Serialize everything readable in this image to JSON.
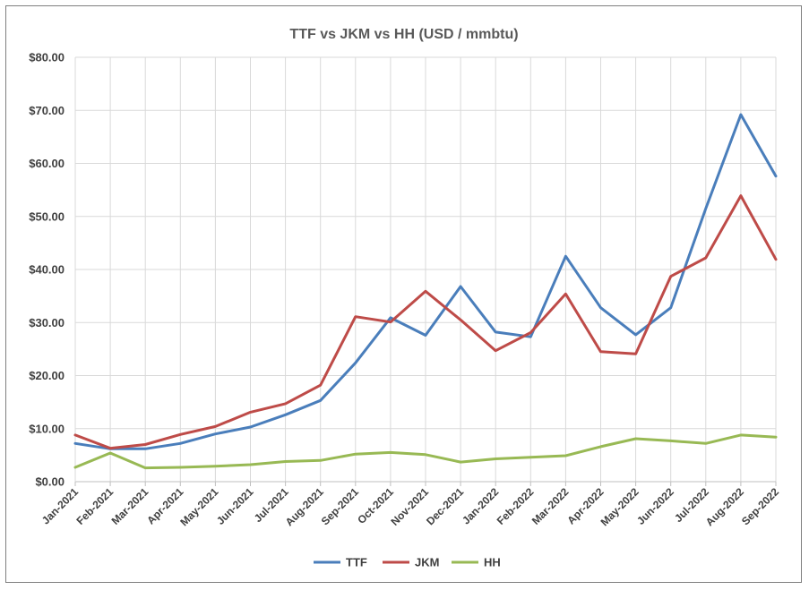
{
  "chart_data": {
    "type": "line",
    "title": "TTF vs JKM vs HH (USD / mmbtu)",
    "xlabel": "",
    "ylabel": "",
    "ylim": [
      0,
      80
    ],
    "y_ticks": [
      "$0.00",
      "$10.00",
      "$20.00",
      "$30.00",
      "$40.00",
      "$50.00",
      "$60.00",
      "$70.00",
      "$80.00"
    ],
    "categories": [
      "Jan-2021",
      "Feb-2021",
      "Mar-2021",
      "Apr-2021",
      "May-2021",
      "Jun-2021",
      "Jul-2021",
      "Aug-2021",
      "Sep-2021",
      "Oct-2021",
      "Nov-2021",
      "Dec-2021",
      "Jan-2022",
      "Feb-2022",
      "Mar-2022",
      "Apr-2022",
      "May-2022",
      "Jun-2022",
      "Jul-2022",
      "Aug-2022",
      "Sep-2022"
    ],
    "grid": true,
    "legend_position": "bottom",
    "series": [
      {
        "name": "TTF",
        "color": "#4a7ebb",
        "values": [
          7.2,
          6.2,
          6.2,
          7.2,
          9.0,
          10.3,
          12.6,
          15.3,
          22.4,
          30.9,
          27.6,
          36.8,
          28.2,
          27.3,
          42.5,
          32.8,
          27.7,
          32.8,
          51.5,
          69.2,
          57.6
        ]
      },
      {
        "name": "JKM",
        "color": "#be4b48",
        "values": [
          8.8,
          6.3,
          7.0,
          8.9,
          10.4,
          13.1,
          14.7,
          18.2,
          31.1,
          30.1,
          35.9,
          30.5,
          24.7,
          28.1,
          35.4,
          24.5,
          24.1,
          38.7,
          42.2,
          53.9,
          41.9
        ]
      },
      {
        "name": "HH",
        "color": "#98b954",
        "values": [
          2.7,
          5.4,
          2.6,
          2.7,
          2.9,
          3.2,
          3.8,
          4.0,
          5.2,
          5.5,
          5.1,
          3.7,
          4.3,
          4.6,
          4.9,
          6.6,
          8.1,
          7.7,
          7.2,
          8.8,
          8.4
        ]
      }
    ]
  }
}
